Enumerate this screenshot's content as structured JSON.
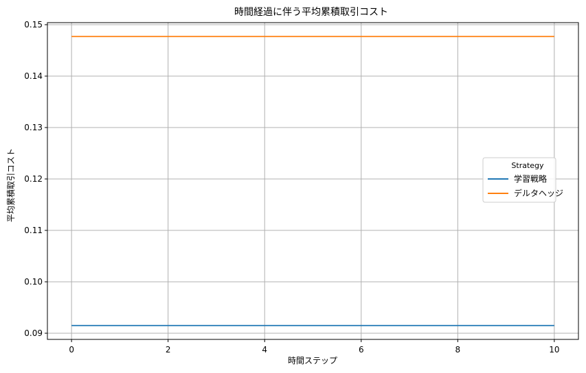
{
  "chart_data": {
    "type": "line",
    "title": "時間経過に伴う平均累積取引コスト",
    "xlabel": "時間ステップ",
    "ylabel": "平均累積取引コスト",
    "x": [
      0,
      1,
      2,
      3,
      4,
      5,
      6,
      7,
      8,
      9,
      10
    ],
    "xlim": [
      -0.5,
      10.5
    ],
    "ylim": [
      0.0888,
      0.1504
    ],
    "xticks": [
      0,
      2,
      4,
      6,
      8,
      10
    ],
    "yticks": [
      0.09,
      0.1,
      0.11,
      0.12,
      0.13,
      0.14,
      0.15
    ],
    "xtick_labels": [
      "0",
      "2",
      "4",
      "6",
      "8",
      "10"
    ],
    "ytick_labels": [
      "0.09",
      "0.10",
      "0.11",
      "0.12",
      "0.13",
      "0.14",
      "0.15"
    ],
    "grid": true,
    "legend": {
      "title": "Strategy",
      "placement": "center-right"
    },
    "series": [
      {
        "name": "学習戦略",
        "color": "#1f77b4",
        "values": [
          0.0915,
          0.0915,
          0.0915,
          0.0915,
          0.0915,
          0.0915,
          0.0915,
          0.0915,
          0.0915,
          0.0915,
          0.0915
        ]
      },
      {
        "name": "デルタヘッジ",
        "color": "#ff7f0e",
        "values": [
          0.1477,
          0.1477,
          0.1477,
          0.1477,
          0.1477,
          0.1477,
          0.1477,
          0.1477,
          0.1477,
          0.1477,
          0.1477
        ]
      }
    ]
  }
}
